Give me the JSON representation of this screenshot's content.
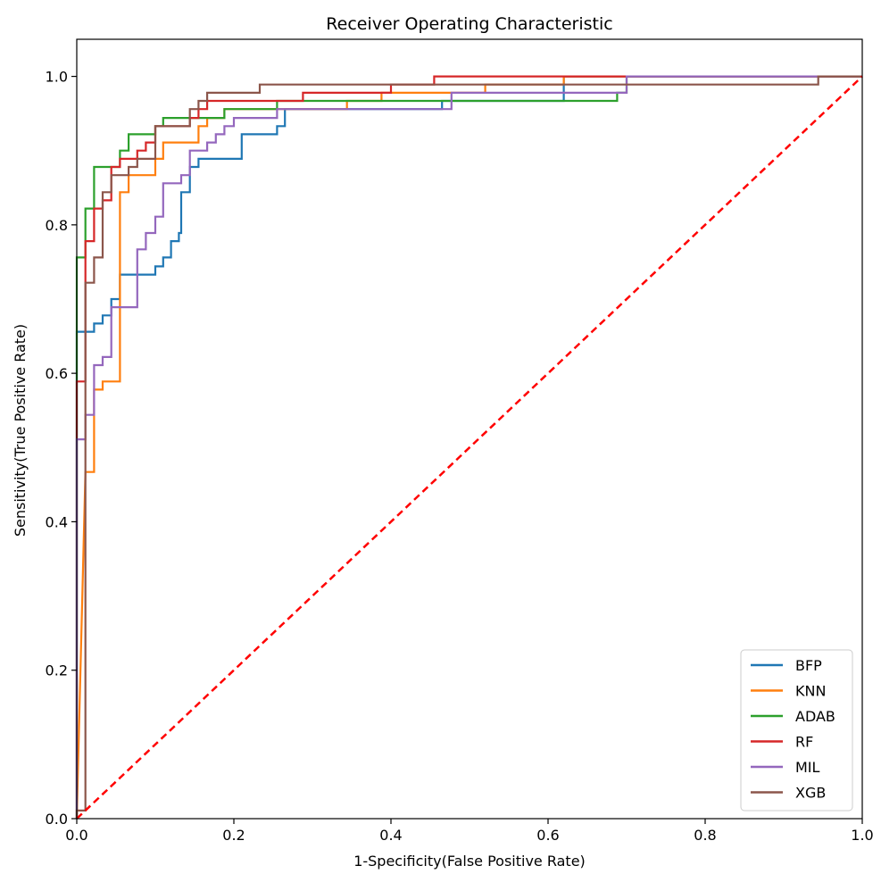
{
  "chart_data": {
    "type": "line",
    "title": "Receiver Operating Characteristic",
    "xlabel": "1-Specificity(False Positive Rate)",
    "ylabel": "Sensitivity(True Positive Rate)",
    "xlim": [
      0.0,
      1.0
    ],
    "ylim": [
      0.0,
      1.05
    ],
    "xticks": [
      0.0,
      0.2,
      0.4,
      0.6,
      0.8,
      1.0
    ],
    "yticks": [
      0.0,
      0.2,
      0.4,
      0.6,
      0.8,
      1.0
    ],
    "xtick_labels": [
      "0.0",
      "0.2",
      "0.4",
      "0.6",
      "0.8",
      "1.0"
    ],
    "ytick_labels": [
      "0.0",
      "0.2",
      "0.4",
      "0.6",
      "0.8",
      "1.0"
    ],
    "grid": false,
    "legend_position": "lower-right",
    "series": [
      {
        "name": "BFP",
        "color": "#1f77b4",
        "points": [
          [
            0,
            0
          ],
          [
            0,
            0.656
          ],
          [
            0.022,
            0.656
          ],
          [
            0.022,
            0.667
          ],
          [
            0.033,
            0.667
          ],
          [
            0.033,
            0.678
          ],
          [
            0.044,
            0.678
          ],
          [
            0.044,
            0.7
          ],
          [
            0.055,
            0.7
          ],
          [
            0.055,
            0.733
          ],
          [
            0.1,
            0.733
          ],
          [
            0.1,
            0.744
          ],
          [
            0.11,
            0.744
          ],
          [
            0.11,
            0.756
          ],
          [
            0.12,
            0.756
          ],
          [
            0.12,
            0.778
          ],
          [
            0.13,
            0.778
          ],
          [
            0.13,
            0.789
          ],
          [
            0.133,
            0.789
          ],
          [
            0.133,
            0.844
          ],
          [
            0.144,
            0.844
          ],
          [
            0.144,
            0.878
          ],
          [
            0.155,
            0.878
          ],
          [
            0.155,
            0.889
          ],
          [
            0.21,
            0.889
          ],
          [
            0.21,
            0.922
          ],
          [
            0.255,
            0.922
          ],
          [
            0.255,
            0.933
          ],
          [
            0.265,
            0.933
          ],
          [
            0.265,
            0.956
          ],
          [
            0.465,
            0.956
          ],
          [
            0.465,
            0.967
          ],
          [
            0.62,
            0.967
          ],
          [
            0.62,
            1.0
          ],
          [
            1.0,
            1.0
          ]
        ]
      },
      {
        "name": "KNN",
        "color": "#ff7f0e",
        "points": [
          [
            0,
            0
          ],
          [
            0.011,
            0.467
          ],
          [
            0.022,
            0.467
          ],
          [
            0.022,
            0.578
          ],
          [
            0.033,
            0.578
          ],
          [
            0.033,
            0.589
          ],
          [
            0.055,
            0.589
          ],
          [
            0.055,
            0.844
          ],
          [
            0.066,
            0.844
          ],
          [
            0.066,
            0.867
          ],
          [
            0.1,
            0.867
          ],
          [
            0.1,
            0.889
          ],
          [
            0.11,
            0.889
          ],
          [
            0.11,
            0.911
          ],
          [
            0.155,
            0.911
          ],
          [
            0.155,
            0.933
          ],
          [
            0.166,
            0.933
          ],
          [
            0.166,
            0.944
          ],
          [
            0.188,
            0.944
          ],
          [
            0.188,
            0.956
          ],
          [
            0.344,
            0.956
          ],
          [
            0.344,
            0.967
          ],
          [
            0.388,
            0.967
          ],
          [
            0.388,
            0.978
          ],
          [
            0.52,
            0.978
          ],
          [
            0.52,
            0.989
          ],
          [
            0.62,
            0.989
          ],
          [
            0.62,
            1.0
          ],
          [
            1.0,
            1.0
          ]
        ]
      },
      {
        "name": "ADAB",
        "color": "#2ca02c",
        "points": [
          [
            0,
            0
          ],
          [
            0,
            0.756
          ],
          [
            0.011,
            0.756
          ],
          [
            0.011,
            0.822
          ],
          [
            0.022,
            0.822
          ],
          [
            0.022,
            0.878
          ],
          [
            0.055,
            0.878
          ],
          [
            0.055,
            0.9
          ],
          [
            0.066,
            0.9
          ],
          [
            0.066,
            0.922
          ],
          [
            0.1,
            0.922
          ],
          [
            0.1,
            0.933
          ],
          [
            0.11,
            0.933
          ],
          [
            0.11,
            0.944
          ],
          [
            0.188,
            0.944
          ],
          [
            0.188,
            0.956
          ],
          [
            0.255,
            0.956
          ],
          [
            0.255,
            0.967
          ],
          [
            0.688,
            0.967
          ],
          [
            0.688,
            0.978
          ],
          [
            0.7,
            0.978
          ],
          [
            0.7,
            1.0
          ],
          [
            1.0,
            1.0
          ]
        ]
      },
      {
        "name": "RF",
        "color": "#d62728",
        "points": [
          [
            0,
            0
          ],
          [
            0,
            0.589
          ],
          [
            0.011,
            0.589
          ],
          [
            0.011,
            0.778
          ],
          [
            0.022,
            0.778
          ],
          [
            0.022,
            0.822
          ],
          [
            0.033,
            0.822
          ],
          [
            0.033,
            0.833
          ],
          [
            0.044,
            0.833
          ],
          [
            0.044,
            0.878
          ],
          [
            0.055,
            0.878
          ],
          [
            0.055,
            0.889
          ],
          [
            0.077,
            0.889
          ],
          [
            0.077,
            0.9
          ],
          [
            0.088,
            0.9
          ],
          [
            0.088,
            0.911
          ],
          [
            0.1,
            0.911
          ],
          [
            0.1,
            0.933
          ],
          [
            0.144,
            0.933
          ],
          [
            0.144,
            0.944
          ],
          [
            0.155,
            0.944
          ],
          [
            0.155,
            0.956
          ],
          [
            0.166,
            0.956
          ],
          [
            0.166,
            0.967
          ],
          [
            0.288,
            0.967
          ],
          [
            0.288,
            0.978
          ],
          [
            0.4,
            0.978
          ],
          [
            0.4,
            0.989
          ],
          [
            0.455,
            0.989
          ],
          [
            0.455,
            1.0
          ],
          [
            1.0,
            1.0
          ]
        ]
      },
      {
        "name": "MIL",
        "color": "#9467bd",
        "points": [
          [
            0,
            0
          ],
          [
            0,
            0.511
          ],
          [
            0.011,
            0.511
          ],
          [
            0.011,
            0.544
          ],
          [
            0.022,
            0.544
          ],
          [
            0.022,
            0.611
          ],
          [
            0.033,
            0.611
          ],
          [
            0.033,
            0.622
          ],
          [
            0.044,
            0.622
          ],
          [
            0.044,
            0.689
          ],
          [
            0.077,
            0.689
          ],
          [
            0.077,
            0.767
          ],
          [
            0.088,
            0.767
          ],
          [
            0.088,
            0.789
          ],
          [
            0.1,
            0.789
          ],
          [
            0.1,
            0.811
          ],
          [
            0.11,
            0.811
          ],
          [
            0.11,
            0.856
          ],
          [
            0.133,
            0.856
          ],
          [
            0.133,
            0.867
          ],
          [
            0.144,
            0.867
          ],
          [
            0.144,
            0.9
          ],
          [
            0.166,
            0.9
          ],
          [
            0.166,
            0.911
          ],
          [
            0.177,
            0.911
          ],
          [
            0.177,
            0.922
          ],
          [
            0.188,
            0.922
          ],
          [
            0.188,
            0.933
          ],
          [
            0.2,
            0.933
          ],
          [
            0.2,
            0.944
          ],
          [
            0.255,
            0.944
          ],
          [
            0.255,
            0.956
          ],
          [
            0.477,
            0.956
          ],
          [
            0.477,
            0.978
          ],
          [
            0.7,
            0.978
          ],
          [
            0.7,
            1.0
          ],
          [
            1.0,
            1.0
          ]
        ]
      },
      {
        "name": "XGB",
        "color": "#8c564b",
        "points": [
          [
            0,
            0
          ],
          [
            0,
            0.011
          ],
          [
            0.011,
            0.011
          ],
          [
            0.011,
            0.722
          ],
          [
            0.022,
            0.722
          ],
          [
            0.022,
            0.756
          ],
          [
            0.033,
            0.756
          ],
          [
            0.033,
            0.844
          ],
          [
            0.044,
            0.844
          ],
          [
            0.044,
            0.867
          ],
          [
            0.066,
            0.867
          ],
          [
            0.066,
            0.878
          ],
          [
            0.077,
            0.878
          ],
          [
            0.077,
            0.889
          ],
          [
            0.1,
            0.889
          ],
          [
            0.1,
            0.933
          ],
          [
            0.144,
            0.933
          ],
          [
            0.144,
            0.956
          ],
          [
            0.155,
            0.956
          ],
          [
            0.155,
            0.967
          ],
          [
            0.166,
            0.967
          ],
          [
            0.166,
            0.978
          ],
          [
            0.233,
            0.978
          ],
          [
            0.233,
            0.989
          ],
          [
            0.944,
            0.989
          ],
          [
            0.944,
            1.0
          ],
          [
            1.0,
            1.0
          ]
        ]
      }
    ],
    "reference_line": {
      "color": "#ff0000",
      "style": "dashed",
      "points": [
        [
          0,
          0
        ],
        [
          1,
          1
        ]
      ]
    }
  }
}
